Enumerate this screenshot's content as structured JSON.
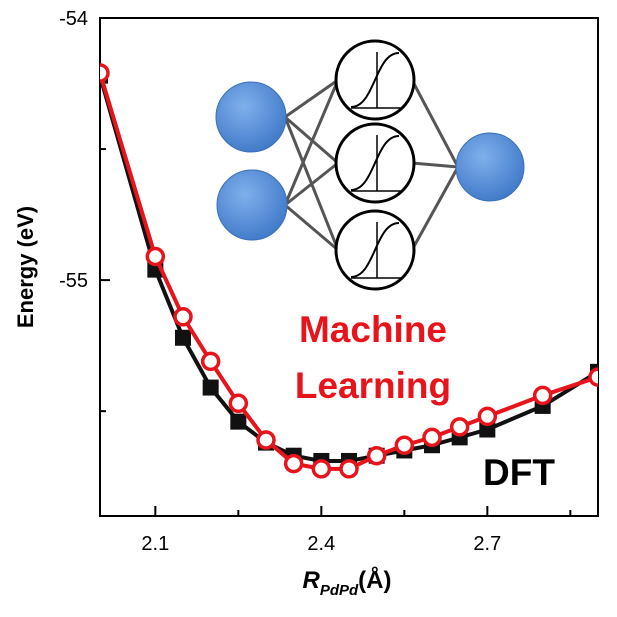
{
  "chart_data": {
    "type": "line",
    "xlim": [
      2.0,
      2.9
    ],
    "ylim": [
      -55.9,
      -54.0
    ],
    "x_ticks": [
      "2.1",
      "2.4",
      "2.7"
    ],
    "x_tick_values": [
      2.1,
      2.4,
      2.7
    ],
    "y_ticks": [
      "-54",
      "-55"
    ],
    "y_tick_values": [
      -54,
      -55
    ],
    "ylabel": "Energy (eV)",
    "xlabel": "R",
    "xlabel_sub": "PdPd",
    "xlabel_unit": "(Å)",
    "annotations": {
      "ml_line1": "Machine",
      "ml_line2": "Learning",
      "dft": "DFT"
    },
    "colors": {
      "ml": "#e8141b",
      "dft": "#111111",
      "node_fill": "#4a86d6",
      "network_edges": "#555555"
    },
    "series": [
      {
        "name": "DFT",
        "marker": "square",
        "x": [
          2.0,
          2.1,
          2.15,
          2.2,
          2.25,
          2.3,
          2.35,
          2.4,
          2.45,
          2.5,
          2.55,
          2.6,
          2.65,
          2.7,
          2.8,
          2.9
        ],
        "y": [
          -54.22,
          -54.96,
          -55.22,
          -55.41,
          -55.54,
          -55.62,
          -55.67,
          -55.69,
          -55.69,
          -55.67,
          -55.65,
          -55.63,
          -55.6,
          -55.57,
          -55.48,
          -55.35
        ]
      },
      {
        "name": "Machine Learning",
        "marker": "circle-open",
        "x": [
          2.0,
          2.1,
          2.15,
          2.2,
          2.25,
          2.3,
          2.35,
          2.4,
          2.45,
          2.5,
          2.55,
          2.6,
          2.65,
          2.7,
          2.8,
          2.9
        ],
        "y": [
          -54.21,
          -54.91,
          -55.14,
          -55.31,
          -55.47,
          -55.61,
          -55.7,
          -55.72,
          -55.72,
          -55.67,
          -55.63,
          -55.6,
          -55.56,
          -55.52,
          -55.44,
          -55.37
        ]
      }
    ]
  }
}
